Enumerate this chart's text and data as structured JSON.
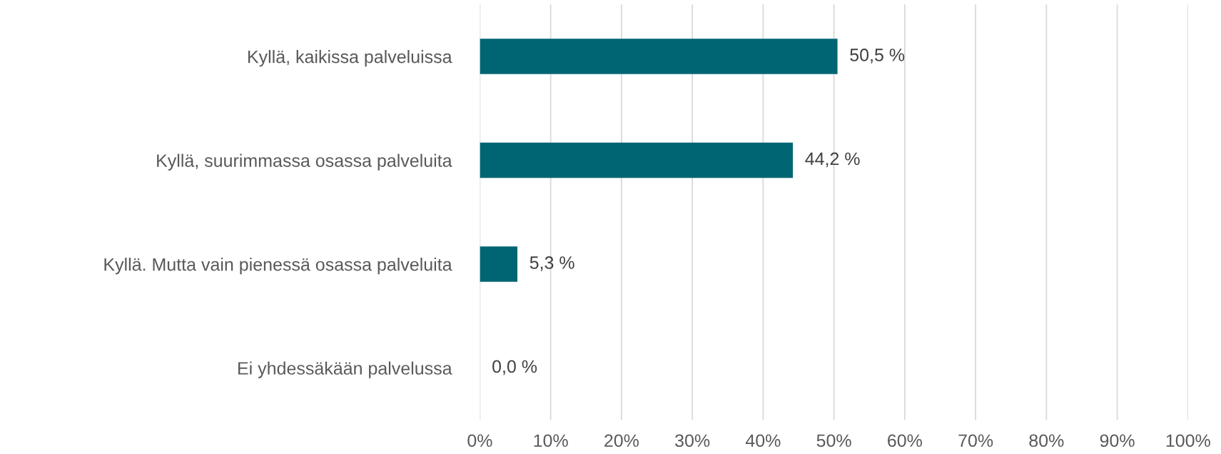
{
  "chart_data": {
    "type": "bar",
    "orientation": "horizontal",
    "categories": [
      "Kyllä, kaikissa palveluissa",
      "Kyllä, suurimmassa osassa palveluita",
      "Kyllä. Mutta vain pienessä osassa palveluita",
      "Ei yhdessäkään palvelussa"
    ],
    "values": [
      50.5,
      44.2,
      5.3,
      0.0
    ],
    "value_labels": [
      "50,5 %",
      "44,2 %",
      "5,3 %",
      "0,0 %"
    ],
    "color": "#006573",
    "xlim": [
      0,
      100
    ],
    "xticks": [
      {
        "value": 0,
        "label": "0%"
      },
      {
        "value": 10,
        "label": "10%"
      },
      {
        "value": 20,
        "label": "20%"
      },
      {
        "value": 30,
        "label": "30%"
      },
      {
        "value": 40,
        "label": "40%"
      },
      {
        "value": 50,
        "label": "50%"
      },
      {
        "value": 60,
        "label": "60%"
      },
      {
        "value": 70,
        "label": "70%"
      },
      {
        "value": 80,
        "label": "80%"
      },
      {
        "value": 90,
        "label": "90%"
      },
      {
        "value": 100,
        "label": "100%"
      }
    ],
    "grid": "x",
    "legend": false
  }
}
